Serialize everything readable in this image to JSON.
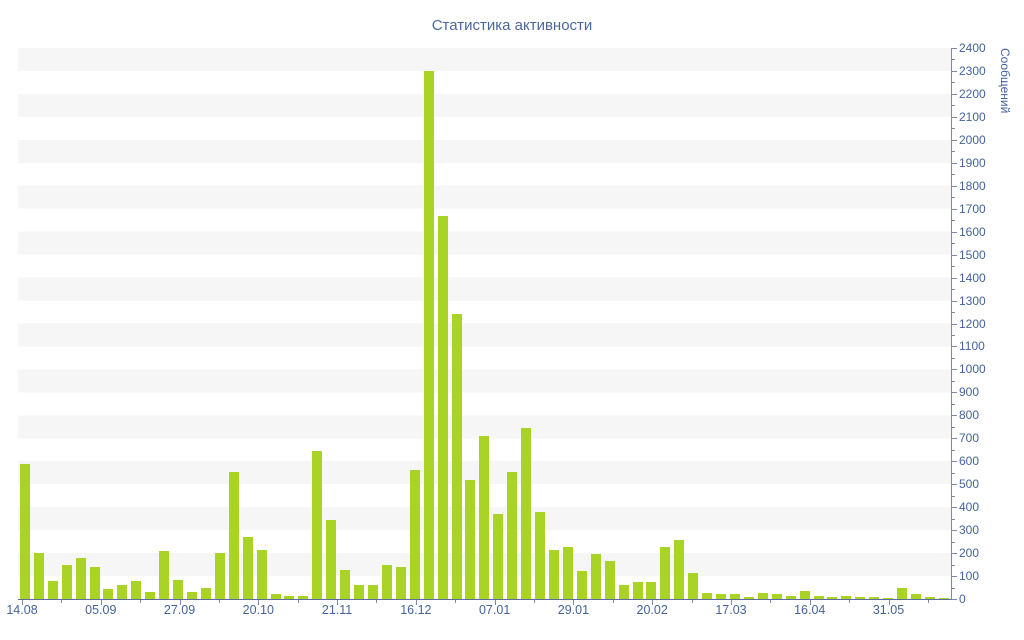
{
  "title": "Статистика активности",
  "chart_data": {
    "type": "bar",
    "title": "Статистика активности",
    "xlabel": "",
    "ylabel": "Сообщений",
    "ylim": [
      0,
      2400
    ],
    "y_tick_step": 100,
    "y_minor_tick_step": 50,
    "grid": "striped-bands",
    "legend": "none",
    "bar_color": "#a9d426",
    "text_color": "#44639c",
    "axis_color": "#7d88ae",
    "band_colors": [
      "#ffffff",
      "#f6f6f7"
    ],
    "x_tick_labels": [
      "14.08",
      "05.09",
      "27.09",
      "20.10",
      "21.11",
      "16.12",
      "07.01",
      "29.01",
      "20.02",
      "17.03",
      "16.04",
      "31.05"
    ],
    "values": [
      590,
      200,
      80,
      150,
      180,
      140,
      45,
      60,
      80,
      30,
      210,
      85,
      30,
      50,
      200,
      555,
      270,
      215,
      20,
      15,
      15,
      645,
      345,
      125,
      60,
      60,
      150,
      140,
      560,
      2300,
      1670,
      1240,
      520,
      710,
      370,
      555,
      745,
      380,
      215,
      225,
      120,
      195,
      165,
      60,
      75,
      75,
      225,
      255,
      115,
      25,
      20,
      20,
      10,
      25,
      20,
      15,
      35,
      15,
      10,
      15,
      10,
      10,
      5,
      50,
      20,
      10,
      5
    ]
  }
}
